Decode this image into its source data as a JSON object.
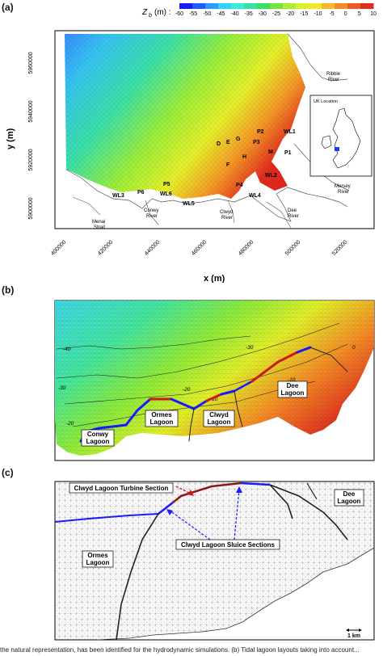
{
  "panels": {
    "a": "(a)",
    "b": "(b)",
    "c": "(c)"
  },
  "colorbar": {
    "label": "Z",
    "label_sub": "b",
    "label_unit": "(m) :",
    "ticks": [
      "-60",
      "-55",
      "-50",
      "-45",
      "-40",
      "-35",
      "-30",
      "-25",
      "-20",
      "-15",
      "-10",
      "-5",
      "0",
      "5",
      "10"
    ],
    "colors": [
      "#1a1aff",
      "#1e5cff",
      "#2a9bff",
      "#2fd2ff",
      "#33f0d9",
      "#33e6a0",
      "#3ae066",
      "#6ee63a",
      "#a8f030",
      "#d8f22a",
      "#f5e62a",
      "#f7b82a",
      "#f58a26",
      "#ef5a22",
      "#e52a1e"
    ]
  },
  "map_a": {
    "xlabel": "x (m)",
    "ylabel": "y (m)",
    "yticks": [
      "5960000",
      "5940000",
      "5920000",
      "5900000"
    ],
    "xticks": [
      "400000",
      "420000",
      "440000",
      "460000",
      "480000",
      "500000",
      "520000"
    ],
    "stations": [
      "P1",
      "P2",
      "P3",
      "P4",
      "P5",
      "P6",
      "WL1",
      "WL2",
      "WL3",
      "WL4",
      "WL5",
      "WL6",
      "D",
      "E",
      "G",
      "F",
      "H",
      "M"
    ],
    "places": {
      "ribble": [
        "Ribble",
        "River"
      ],
      "mersey": [
        "Mersey",
        "River"
      ],
      "dee": [
        "Dee",
        "River"
      ],
      "clwyd": [
        "Clwyd",
        "River"
      ],
      "conwy": [
        "Conwy",
        "River"
      ],
      "menai": [
        "Menai",
        "Strait"
      ]
    },
    "inset_title": "UK Location"
  },
  "map_b": {
    "lagoons": [
      "Conwy Lagoon",
      "Ormes Lagoon",
      "Clwyd Lagoon",
      "Dee Lagoon"
    ],
    "contours": [
      "-40",
      "-30",
      "-30",
      "-20",
      "-10",
      "-20",
      "-10",
      "0"
    ]
  },
  "map_c": {
    "turbine_label": "Clwyd Lagoon Turbine Section",
    "sluice_label": "Clwyd Lagoon Sluice Sections",
    "ormes": [
      "Ormes",
      "Lagoon"
    ],
    "dee": [
      "Dee",
      "Lagoon"
    ],
    "scale": "1 km"
  },
  "caption": "the natural representation, has been identified for the hydrodynamic simulations. (b) Tidal lagoon layouts taking into account..."
}
